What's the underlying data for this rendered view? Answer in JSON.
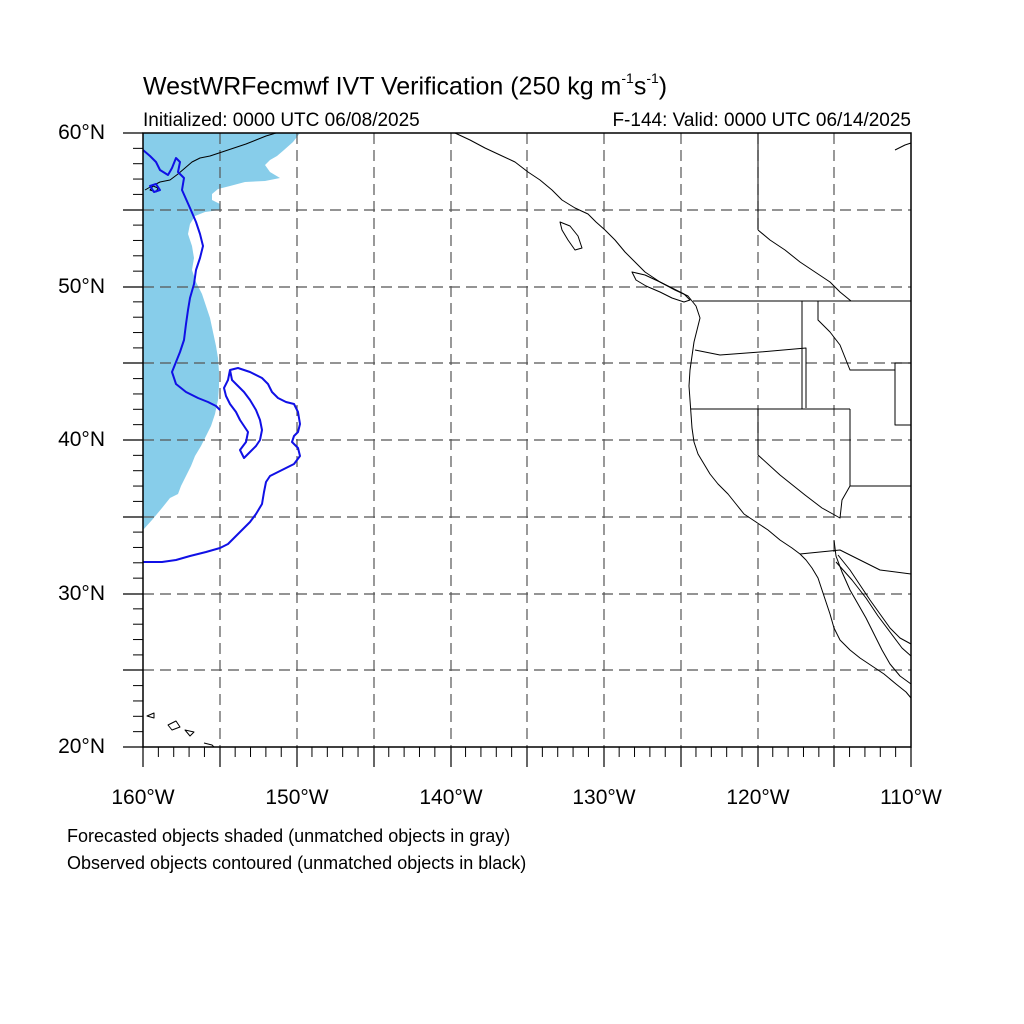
{
  "title": {
    "main": "WestWRFecmwf IVT Verification (250 kg m",
    "exp1": "-1",
    "mid": "s",
    "exp2": "-1",
    "end": ")"
  },
  "subtitle_left": "Initialized: 0000 UTC 06/08/2025",
  "subtitle_right": "F-144: Valid: 0000 UTC 06/14/2025",
  "lat_labels": [
    "60°N",
    "50°N",
    "40°N",
    "30°N",
    "20°N"
  ],
  "lon_labels": [
    "160°W",
    "150°W",
    "140°W",
    "130°W",
    "120°W",
    "110°W"
  ],
  "notes": [
    "Forecasted objects shaded (unmatched objects in gray)",
    "Observed objects contoured (unmatched objects in black)"
  ],
  "map": {
    "extent": {
      "lon": [
        -160,
        -110
      ],
      "lat": [
        20,
        60
      ]
    },
    "grid_interval_deg": 5,
    "grid_style": "dashed",
    "forecast_fill_color": "#87cdea",
    "observed_contour_color": "#1010e6",
    "coastline_color": "#000000"
  }
}
